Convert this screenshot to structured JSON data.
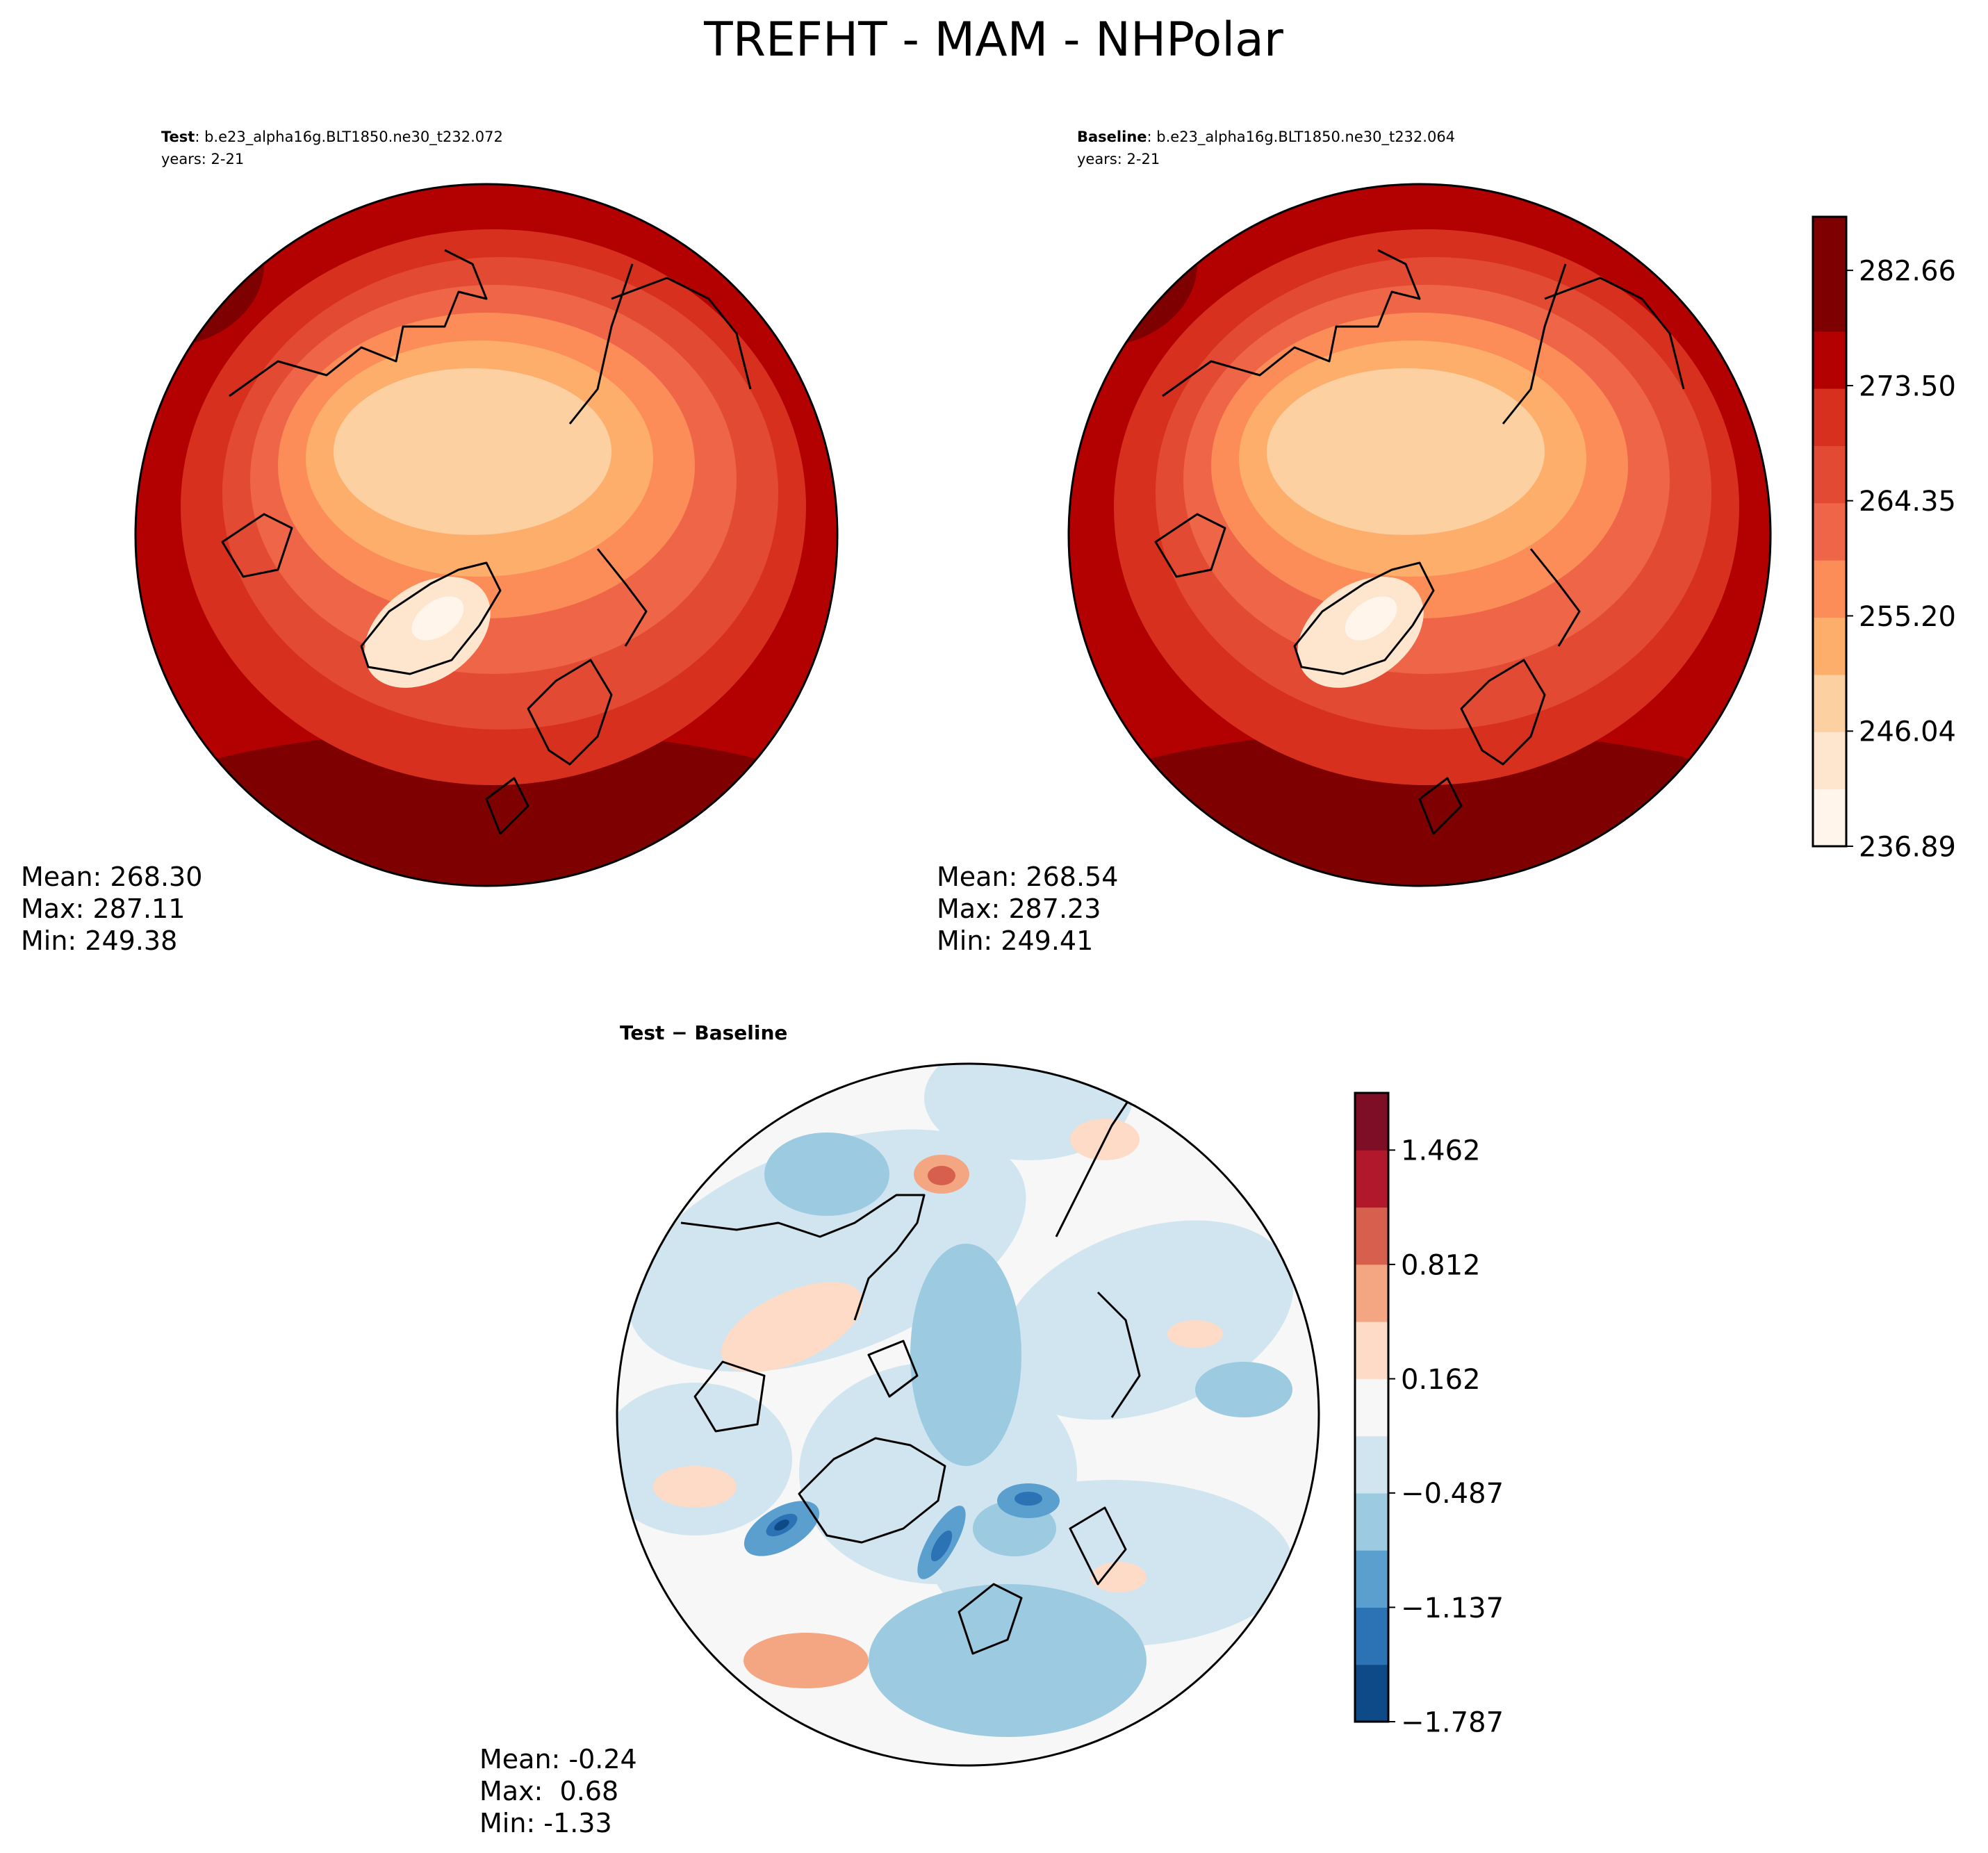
{
  "figure": {
    "title": "TREFHT - MAM - NHPolar"
  },
  "colors": {
    "reds": [
      "#fff5eb",
      "#fee6ce",
      "#fdd0a2",
      "#fdae6b",
      "#fc8d59",
      "#ef6548",
      "#e34a33",
      "#d7301f",
      "#b30000",
      "#7f0000"
    ],
    "diff": [
      "#0d4a87",
      "#2c73b6",
      "#5b9fcf",
      "#9ccae1",
      "#d1e5f0",
      "#f7f7f7",
      "#fddbc7",
      "#f4a582",
      "#d6604d",
      "#b2182b",
      "#7e0e25"
    ]
  },
  "panels": {
    "test": {
      "label_bold": "Test",
      "label_rest": ": b.e23_alpha16g.BLT1850.ne30_t232.072",
      "years": "years: 2-21",
      "stats": [
        "Mean: 268.30",
        "Max: 287.11",
        "Min: 249.38"
      ]
    },
    "baseline": {
      "label_bold": "Baseline",
      "label_rest": ": b.e23_alpha16g.BLT1850.ne30_t232.064",
      "years": "years: 2-21",
      "stats": [
        "Mean: 268.54",
        "Max: 287.23",
        "Min: 249.41"
      ]
    },
    "diff": {
      "title": "Test − Baseline",
      "stats": [
        "Mean: -0.24",
        "Max:  0.68",
        "Min: -1.33"
      ]
    }
  },
  "chart_data": [
    {
      "type": "heatmap",
      "panel": "Test",
      "projection": "north polar stereographic",
      "mean": 268.3,
      "max": 287.11,
      "min": 249.38,
      "colorbar": {
        "min": 236.89,
        "max": 286.92,
        "levels": 11,
        "tick_labels": [
          "236.89",
          "246.04",
          "255.20",
          "264.35",
          "273.50",
          "282.66"
        ]
      }
    },
    {
      "type": "heatmap",
      "panel": "Baseline",
      "projection": "north polar stereographic",
      "mean": 268.54,
      "max": 287.23,
      "min": 249.41,
      "colorbar": {
        "min": 236.89,
        "max": 286.92,
        "levels": 11,
        "tick_labels": [
          "236.89",
          "246.04",
          "255.20",
          "264.35",
          "273.50",
          "282.66"
        ]
      }
    },
    {
      "type": "heatmap",
      "panel": "Test − Baseline",
      "projection": "north polar stereographic",
      "mean": -0.24,
      "max": 0.68,
      "min": -1.33,
      "colorbar": {
        "min": -1.787,
        "max": 1.787,
        "levels": 12,
        "tick_labels": [
          "−1.787",
          "−1.137",
          "−0.487",
          "0.162",
          "0.812",
          "1.462"
        ]
      }
    }
  ]
}
